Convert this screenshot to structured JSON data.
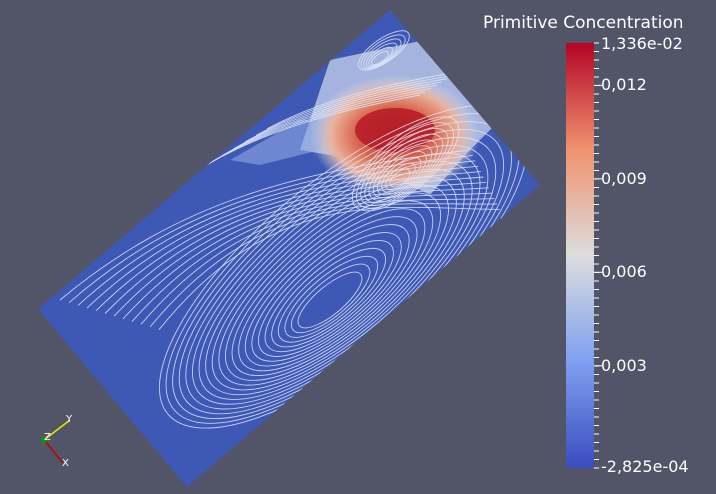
{
  "colorbar": {
    "title": "Primitive Concentration",
    "max_label": "1,336e-02",
    "min_label": "-2,825e-04",
    "ticks": [
      {
        "value": 0.012,
        "label": "0,012"
      },
      {
        "value": 0.009,
        "label": "0,009"
      },
      {
        "value": 0.006,
        "label": "0,006"
      },
      {
        "value": 0.003,
        "label": "0,003"
      }
    ],
    "range": [
      -0.0002825,
      0.01336
    ],
    "colormap": [
      "#3b4cc0",
      "#dddddd",
      "#b40426"
    ]
  },
  "axes": {
    "y_label": "Y",
    "z_label": "Z",
    "x_label": "X",
    "y_color": "#e8e800",
    "z_color": "#00a000",
    "x_color": "#c00000"
  },
  "colors": {
    "background": "#525568",
    "field": "#3e58b5",
    "streamline": "#dfe6f7"
  }
}
